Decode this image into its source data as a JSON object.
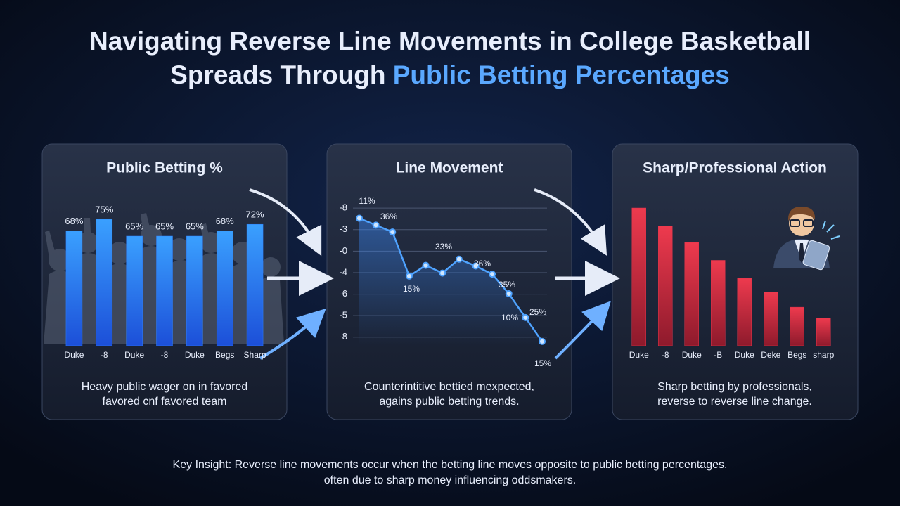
{
  "title": {
    "line1": "Navigating Reverse Line Movements in College Basketball",
    "line2a": "Spreads Through",
    "line2b": "Public Betting Percentages"
  },
  "chart_data": [
    {
      "type": "bar",
      "title": "Public Betting %",
      "categories": [
        "Duke",
        "-8",
        "Duke",
        "-8",
        "Duke",
        "Begs",
        "Sharp"
      ],
      "values": [
        68,
        75,
        65,
        65,
        65,
        68,
        72
      ],
      "value_labels": [
        "68%",
        "75%",
        "65%",
        "65%",
        "65%",
        "68%",
        "72%"
      ],
      "ylim": [
        0,
        80
      ],
      "color": "#2f80ff",
      "caption": [
        "Heavy public wager on in favored",
        "favored cnf favored team"
      ]
    },
    {
      "type": "line",
      "title": "Line Movement",
      "values": [
        5.53,
        5.21,
        4.89,
        2.84,
        3.34,
        2.98,
        3.63,
        3.31,
        2.93,
        2.02,
        0.91,
        -0.2
      ],
      "ylim": [
        -0.4,
        6.3
      ],
      "yticks": [
        {
          "value": 6,
          "label": "-8"
        },
        {
          "value": 5,
          "label": "-3"
        },
        {
          "value": 4,
          "label": "-0"
        },
        {
          "value": 3,
          "label": "-4"
        },
        {
          "value": 2,
          "label": "-6"
        },
        {
          "value": 1,
          "label": "-5"
        },
        {
          "value": 0,
          "label": "-8"
        }
      ],
      "grid": true,
      "color": "#4fa3ff",
      "annotations": [
        "11%",
        "36%",
        "15%",
        "33%",
        "36%",
        "35%",
        "10%",
        "25%",
        "15%"
      ],
      "caption": [
        "Counterintitive bettied mexpected,",
        "agains public betting trends."
      ]
    },
    {
      "type": "bar",
      "title": "Sharp/Professional Action",
      "categories": [
        "Duke",
        "-8",
        "Duke",
        "-B",
        "Duke",
        "Deke",
        "Begs",
        "sharp"
      ],
      "values": [
        100,
        87,
        75,
        62,
        49,
        39,
        28,
        20
      ],
      "ylim": [
        0,
        100
      ],
      "color": "#e0344a",
      "caption": [
        "Sharp betting by professionals,",
        "reverse to reverse line change."
      ]
    }
  ],
  "insight": [
    "Key Insight: Reverse line movements occur when the betting line moves opposite to public betting percentages,",
    "often due to sharp money influencing oddsmakers."
  ]
}
